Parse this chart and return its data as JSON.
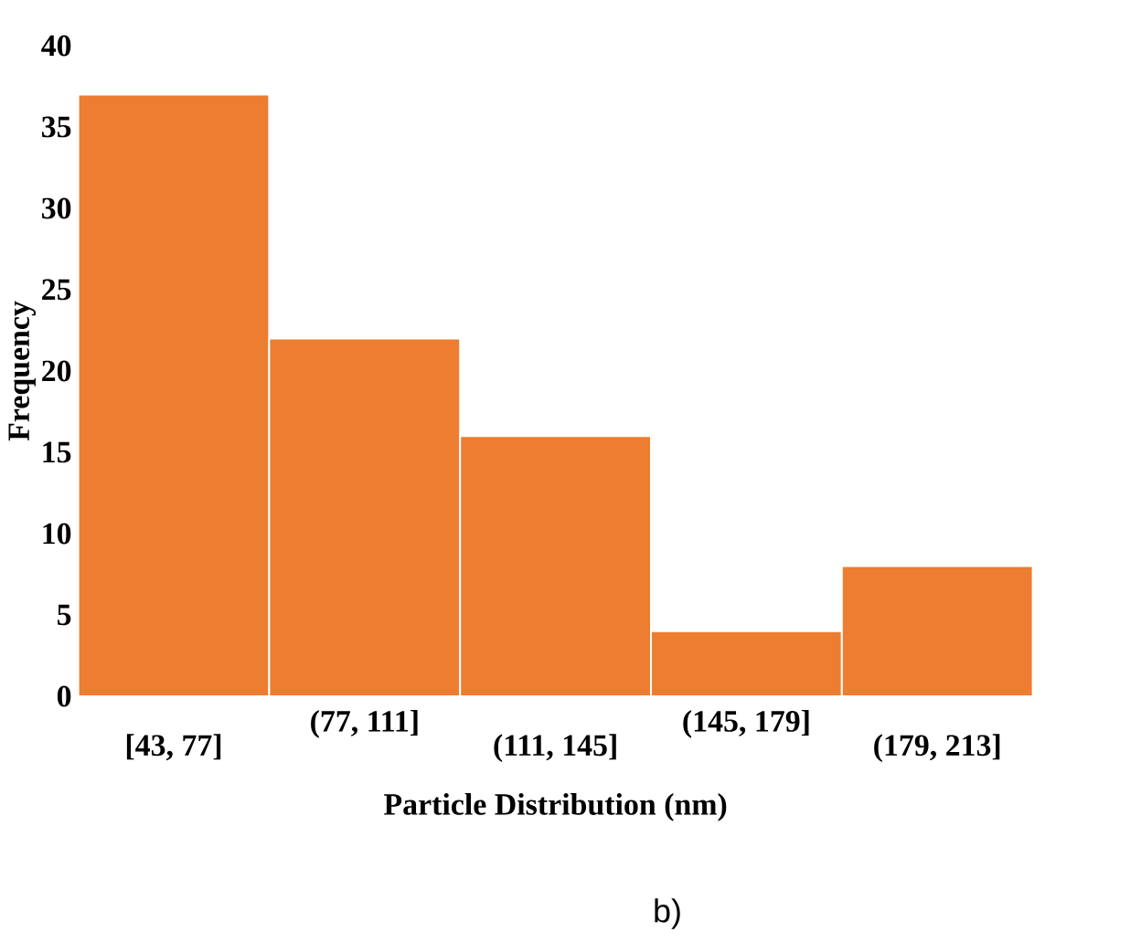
{
  "chart_data": {
    "type": "bar",
    "categories": [
      "[43, 77]",
      "(77, 111]",
      "(111, 145]",
      "(145, 179]",
      "(179, 213]"
    ],
    "values": [
      37,
      22,
      16,
      4,
      8
    ],
    "color": "#ed7d31",
    "ylim": [
      0,
      40
    ],
    "yticks": [
      0,
      5,
      10,
      15,
      20,
      25,
      30,
      35,
      40
    ],
    "xlabel": "Particle Distribution (nm)",
    "ylabel": "Frequency",
    "annotations": [
      "b)"
    ]
  }
}
